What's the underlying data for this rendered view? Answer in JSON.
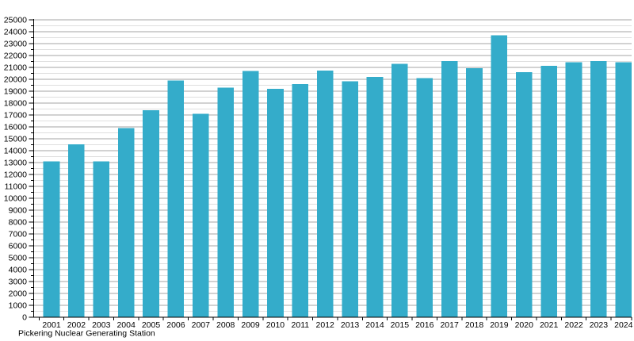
{
  "chart_data": {
    "type": "bar",
    "title": "Pickering Nuclear Generating Station",
    "xlabel": "",
    "ylabel": "",
    "categories": [
      "2001",
      "2002",
      "2003",
      "2004",
      "2005",
      "2006",
      "2007",
      "2008",
      "2009",
      "2010",
      "2011",
      "2012",
      "2013",
      "2014",
      "2015",
      "2016",
      "2017",
      "2018",
      "2019",
      "2020",
      "2021",
      "2022",
      "2023",
      "2024"
    ],
    "values": [
      13100,
      14550,
      13100,
      15900,
      17400,
      19900,
      17100,
      19300,
      20700,
      19200,
      19600,
      20750,
      19850,
      20200,
      21300,
      20100,
      21550,
      20950,
      23700,
      20600,
      21150,
      21450,
      21550,
      21450
    ],
    "ylim": [
      0,
      25000
    ],
    "y_axis": {
      "min": 0,
      "max": 25000,
      "major_step": 1000,
      "minor_step": 500
    },
    "grid": true,
    "legend": "none",
    "colors": {
      "bar": "#34ACCA",
      "major_grid": "#A5A5A5",
      "minor_grid": "#DFDFDF",
      "axis": "#000000",
      "text": "#000000",
      "background": "#FFFFFF"
    }
  }
}
